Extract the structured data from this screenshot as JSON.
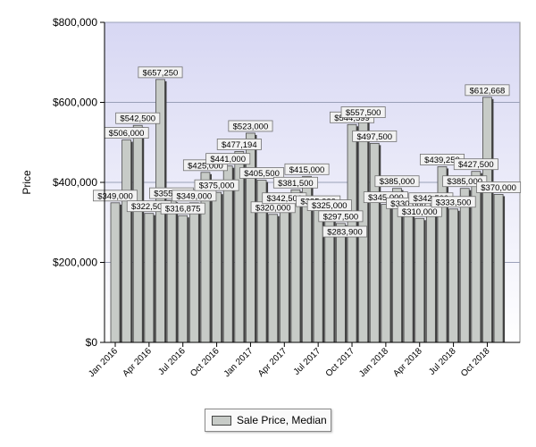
{
  "chart_data": {
    "type": "bar",
    "ylabel": "Price",
    "ylim": [
      0,
      800000
    ],
    "yticks": [
      "$0",
      "$200,000",
      "$400,000",
      "$600,000",
      "$800,000"
    ],
    "xticks": [
      "Jan 2016",
      "Apr 2016",
      "Jul 2016",
      "Oct 2016",
      "Jan 2017",
      "Apr 2017",
      "Jul 2017",
      "Oct 2017",
      "Jan 2018",
      "Apr 2018",
      "Jul 2018",
      "Oct 2018"
    ],
    "legend": "bottom-center",
    "grid": "horizontal",
    "series": [
      {
        "name": "Sale Price, Median",
        "color": "#c7cbc7",
        "values": [
          349000,
          506000,
          542500,
          322500,
          657250,
          355000,
          316875,
          349000,
          425000,
          375000,
          441000,
          477194,
          523000,
          405500,
          320000,
          342500,
          381500,
          415000,
          335000,
          325000,
          297500,
          544599,
          557500,
          497500,
          345000,
          385000,
          330000,
          310000,
          342500,
          439250,
          333500,
          385000,
          427500,
          612668,
          370000
        ],
        "labels": [
          "$349,000",
          "$506,000",
          "$542,500",
          "$322,500",
          "$657,250",
          "$355,000",
          "$316,875",
          "$349,000",
          "$425,000",
          "$375,000",
          "$441,000",
          "$477,194",
          "$523,000",
          "$405,500",
          "$320,000",
          "$342,500",
          "$381,500",
          "$415,000",
          "$335,000",
          "$325,000",
          "$297,500",
          "$544,599",
          "$557,500",
          "$497,500",
          "$345,000",
          "$385,000",
          "$330,000",
          "$310,000",
          "$342,500",
          "$439,250",
          "$333,500",
          "$385,000",
          "$427,500",
          "$612,668",
          "$370,000"
        ]
      }
    ],
    "extra_labels": [
      "$283,900"
    ]
  }
}
